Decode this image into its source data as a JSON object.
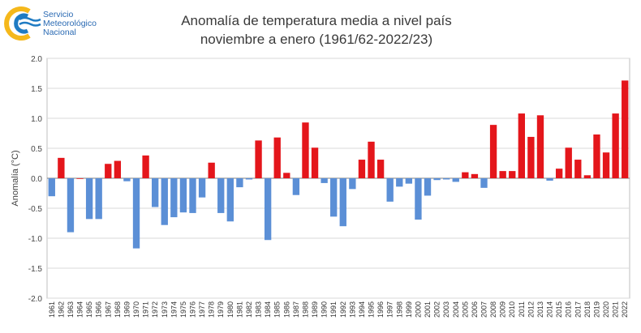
{
  "logo": {
    "line1": "Servicio",
    "line2": "Meteorológico",
    "line3": "Nacional",
    "colors": {
      "blue": "#1f7bc3",
      "yellow": "#f5b81b"
    }
  },
  "chart_data": {
    "type": "bar",
    "title": "Anomalía de temperatura media a nivel país",
    "subtitle": "noviembre a enero (1961/62-2022/23)",
    "xlabel": "",
    "ylabel": "Anomalía (°C)",
    "ylim": [
      -2.0,
      2.0
    ],
    "yticks": [
      "2.0",
      "1.5",
      "1.0",
      "0.5",
      "0.0",
      "-0.5",
      "-1.0",
      "-1.5",
      "-2.0"
    ],
    "grid": true,
    "colors": {
      "positive": "#e4161b",
      "negative": "#5b8fd6"
    },
    "categories": [
      "1961",
      "1962",
      "1963",
      "1964",
      "1965",
      "1966",
      "1967",
      "1968",
      "1969",
      "1970",
      "1971",
      "1972",
      "1973",
      "1974",
      "1975",
      "1976",
      "1977",
      "1978",
      "1979",
      "1980",
      "1981",
      "1982",
      "1983",
      "1984",
      "1985",
      "1986",
      "1987",
      "1988",
      "1989",
      "1990",
      "1991",
      "1992",
      "1993",
      "1994",
      "1995",
      "1996",
      "1997",
      "1998",
      "1999",
      "2000",
      "2001",
      "2002",
      "2003",
      "2004",
      "2005",
      "2006",
      "2007",
      "2008",
      "2009",
      "2010",
      "2011",
      "2012",
      "2013",
      "2014",
      "2015",
      "2016",
      "2017",
      "2018",
      "2019",
      "2020",
      "2021",
      "2022"
    ],
    "values": [
      -0.3,
      0.34,
      -0.9,
      0.0,
      -0.68,
      -0.68,
      0.24,
      0.29,
      -0.05,
      -1.17,
      0.38,
      -0.48,
      -0.78,
      -0.65,
      -0.57,
      -0.58,
      -0.32,
      0.26,
      -0.58,
      -0.72,
      -0.15,
      -0.02,
      0.63,
      -1.03,
      0.68,
      0.09,
      -0.28,
      0.93,
      0.51,
      -0.08,
      -0.64,
      -0.8,
      -0.18,
      0.31,
      0.61,
      0.31,
      -0.39,
      -0.14,
      -0.09,
      -0.69,
      -0.29,
      -0.03,
      -0.02,
      -0.06,
      0.1,
      0.07,
      -0.16,
      0.89,
      0.12,
      0.12,
      1.08,
      0.69,
      1.05,
      -0.04,
      0.16,
      0.51,
      0.31,
      0.05,
      0.73,
      0.43,
      1.08,
      1.63
    ]
  }
}
